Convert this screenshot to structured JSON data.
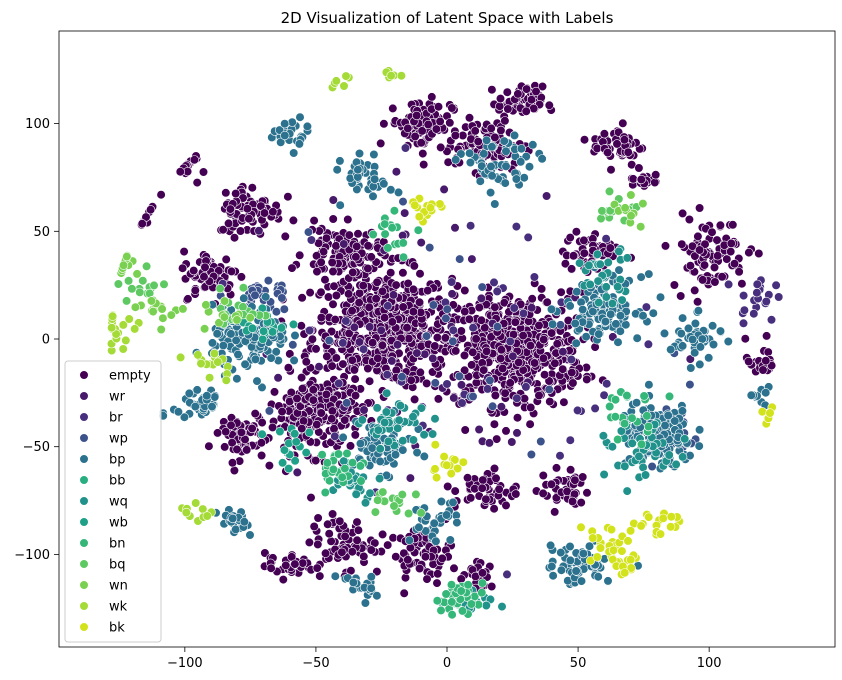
{
  "chart_data": {
    "type": "scatter",
    "title": "2D Visualization of Latent Space with Labels",
    "xlabel": "",
    "ylabel": "",
    "xlim": [
      -148,
      148
    ],
    "ylim": [
      -143,
      143
    ],
    "xticks": [
      -100,
      -50,
      0,
      50,
      100
    ],
    "yticks": [
      -100,
      -50,
      0,
      50,
      100
    ],
    "grid": false,
    "legend_position": "lower-left",
    "series": [
      {
        "name": "empty",
        "color": "#440154",
        "clusters": [
          [
            -25,
            5,
            22,
            22,
            550
          ],
          [
            25,
            -5,
            22,
            22,
            550
          ],
          [
            -50,
            -35,
            15,
            15,
            220
          ],
          [
            -40,
            40,
            12,
            10,
            110
          ],
          [
            -10,
            100,
            10,
            10,
            90
          ],
          [
            28,
            110,
            7,
            6,
            60
          ],
          [
            15,
            90,
            12,
            10,
            90
          ],
          [
            65,
            90,
            8,
            8,
            50
          ],
          [
            -90,
            30,
            9,
            9,
            70
          ],
          [
            -75,
            60,
            10,
            10,
            80
          ],
          [
            100,
            40,
            12,
            14,
            90
          ],
          [
            -10,
            -100,
            10,
            10,
            60
          ],
          [
            15,
            -70,
            10,
            8,
            50
          ],
          [
            -40,
            -95,
            10,
            10,
            60
          ],
          [
            55,
            40,
            9,
            9,
            50
          ],
          [
            -80,
            -45,
            9,
            9,
            60
          ],
          [
            45,
            -70,
            8,
            8,
            40
          ],
          [
            -120,
            60,
            6,
            6,
            25
          ],
          [
            -100,
            80,
            5,
            5,
            20
          ],
          [
            120,
            -10,
            5,
            8,
            20
          ],
          [
            -60,
            -105,
            8,
            5,
            30
          ],
          [
            75,
            75,
            5,
            5,
            20
          ],
          [
            12,
            -110,
            5,
            5,
            20
          ],
          [
            -18,
            15,
            8,
            8,
            40
          ]
        ]
      },
      {
        "name": "wr",
        "color": "#481a6c",
        "clusters": [
          [
            0,
            0,
            60,
            60,
            60
          ]
        ]
      },
      {
        "name": "br",
        "color": "#472f7d",
        "clusters": [
          [
            0,
            0,
            60,
            60,
            50
          ],
          [
            118,
            20,
            6,
            10,
            20
          ]
        ]
      },
      {
        "name": "wp",
        "color": "#3b528b",
        "clusters": [
          [
            -70,
            20,
            8,
            8,
            30
          ],
          [
            0,
            0,
            60,
            60,
            30
          ],
          [
            85,
            -45,
            10,
            10,
            30
          ]
        ]
      },
      {
        "name": "bp",
        "color": "#2c728e",
        "clusters": [
          [
            -75,
            0,
            12,
            12,
            150
          ],
          [
            80,
            -45,
            12,
            12,
            150
          ],
          [
            60,
            15,
            12,
            12,
            120
          ],
          [
            -25,
            -50,
            10,
            10,
            80
          ],
          [
            20,
            80,
            12,
            12,
            60
          ],
          [
            50,
            -105,
            10,
            8,
            60
          ],
          [
            -30,
            75,
            8,
            8,
            40
          ],
          [
            -95,
            -30,
            8,
            8,
            40
          ],
          [
            95,
            0,
            8,
            8,
            40
          ],
          [
            -60,
            95,
            6,
            6,
            25
          ],
          [
            -80,
            -85,
            6,
            6,
            25
          ],
          [
            -35,
            -115,
            6,
            6,
            20
          ],
          [
            -5,
            -85,
            8,
            8,
            30
          ],
          [
            120,
            -25,
            4,
            4,
            10
          ]
        ]
      },
      {
        "name": "bb",
        "color": "#28ae80",
        "clusters": [
          [
            0,
            0,
            60,
            60,
            0
          ]
        ]
      },
      {
        "name": "wq",
        "color": "#21918c",
        "clusters": [
          [
            -20,
            -40,
            10,
            10,
            40
          ],
          [
            75,
            -55,
            12,
            12,
            40
          ],
          [
            60,
            30,
            10,
            10,
            30
          ],
          [
            -35,
            -65,
            8,
            8,
            25
          ],
          [
            10,
            -120,
            8,
            5,
            20
          ]
        ]
      },
      {
        "name": "wb",
        "color": "#1fa088",
        "clusters": [
          [
            -70,
            5,
            8,
            8,
            15
          ],
          [
            -60,
            -50,
            8,
            8,
            15
          ]
        ]
      },
      {
        "name": "bn",
        "color": "#35b779",
        "clusters": [
          [
            -40,
            -60,
            8,
            8,
            25
          ],
          [
            5,
            -120,
            8,
            6,
            30
          ],
          [
            70,
            -35,
            10,
            10,
            20
          ],
          [
            -20,
            50,
            8,
            8,
            15
          ]
        ]
      },
      {
        "name": "bq",
        "color": "#5ec962",
        "clusters": [
          [
            -115,
            25,
            8,
            8,
            15
          ],
          [
            -20,
            -75,
            8,
            6,
            15
          ],
          [
            -80,
            15,
            8,
            8,
            15
          ],
          [
            65,
            60,
            6,
            6,
            15
          ]
        ]
      },
      {
        "name": "wn",
        "color": "#7ad151",
        "clusters": [
          [
            -125,
            35,
            6,
            6,
            15
          ],
          [
            -110,
            15,
            8,
            6,
            15
          ],
          [
            70,
            60,
            6,
            6,
            10
          ],
          [
            -85,
            10,
            8,
            8,
            12
          ]
        ]
      },
      {
        "name": "wk",
        "color": "#a5db36",
        "clusters": [
          [
            -125,
            0,
            8,
            8,
            15
          ],
          [
            -90,
            -10,
            8,
            8,
            15
          ],
          [
            -135,
            10,
            3,
            3,
            5
          ],
          [
            -95,
            -80,
            8,
            5,
            10
          ],
          [
            -40,
            120,
            5,
            3,
            6
          ],
          [
            -20,
            122,
            5,
            3,
            6
          ]
        ]
      },
      {
        "name": "bk",
        "color": "#d2e21b",
        "clusters": [
          [
            60,
            -95,
            8,
            8,
            25
          ],
          [
            80,
            -85,
            8,
            6,
            20
          ],
          [
            0,
            -60,
            6,
            6,
            15
          ],
          [
            -10,
            60,
            6,
            6,
            15
          ],
          [
            125,
            -35,
            4,
            4,
            6
          ],
          [
            70,
            -105,
            5,
            5,
            10
          ]
        ]
      }
    ]
  }
}
